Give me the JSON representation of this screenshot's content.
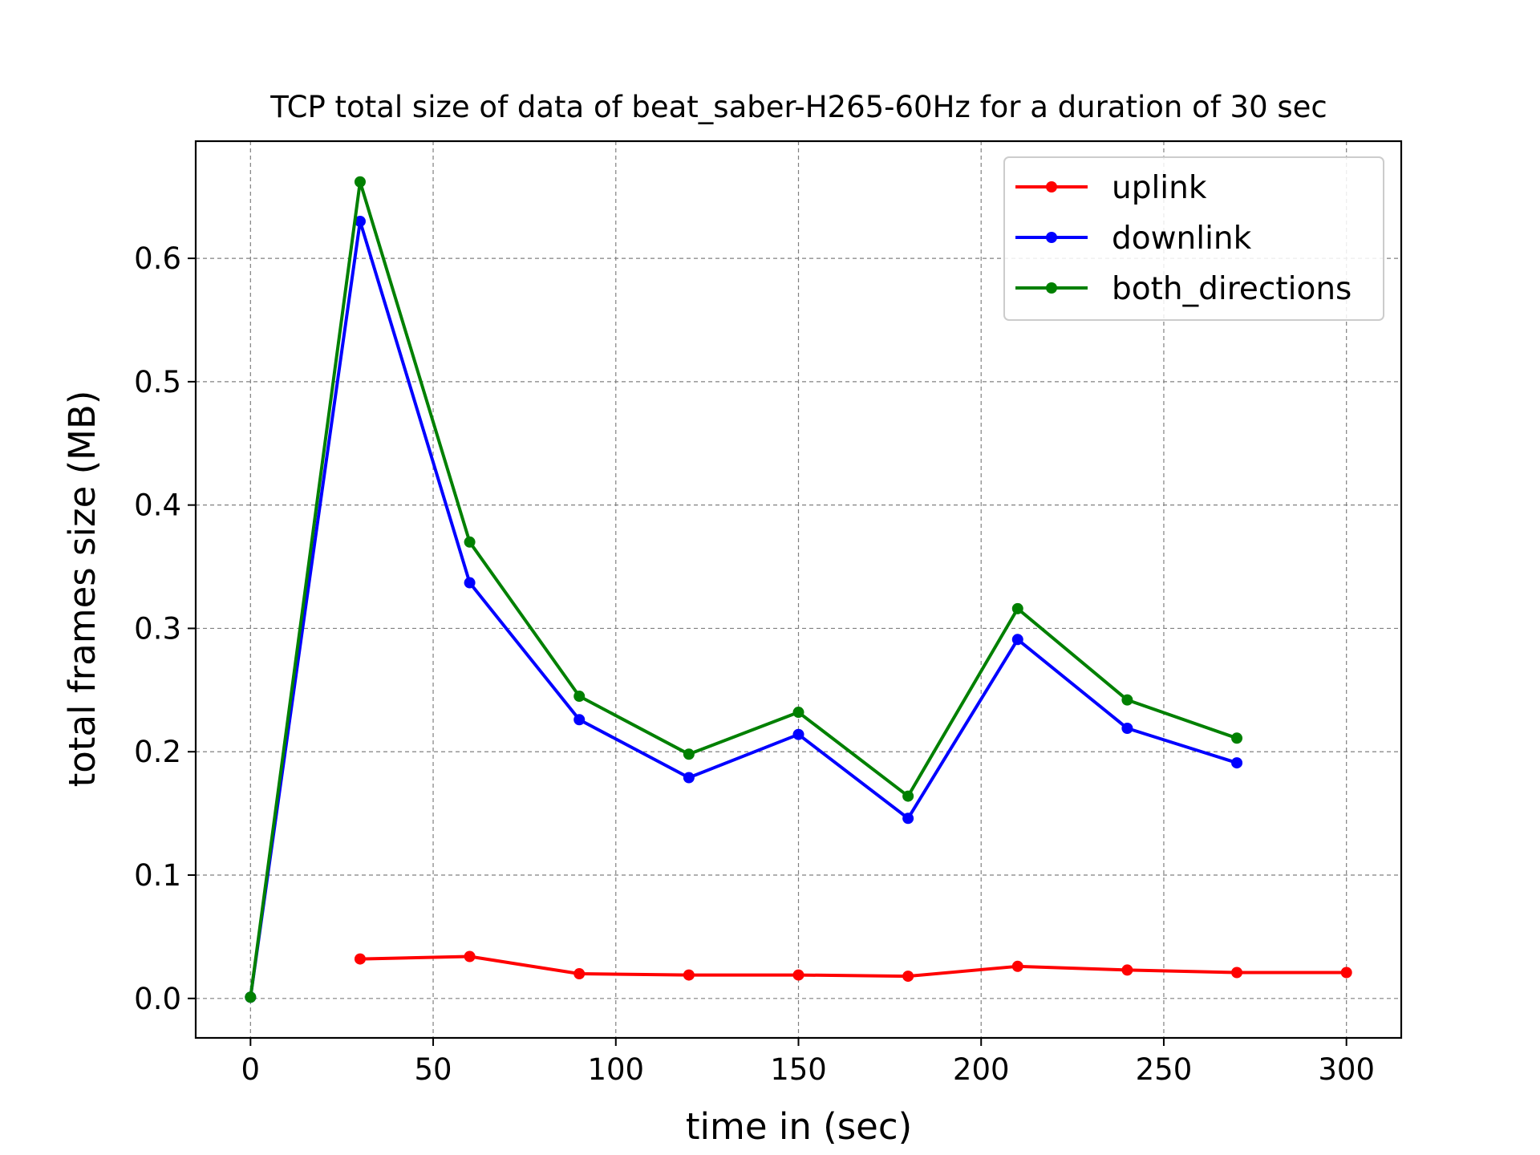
{
  "chart_data": {
    "type": "line",
    "title": "TCP total size of data of beat_saber-H265-60Hz for a duration of 30 sec",
    "xlabel": "time in (sec)",
    "ylabel": "total frames size (MB)",
    "xlim": [
      -15,
      315
    ],
    "ylim": [
      -0.032,
      0.695
    ],
    "xticks": [
      0,
      50,
      100,
      150,
      200,
      250,
      300
    ],
    "xtick_labels": [
      "0",
      "50",
      "100",
      "150",
      "200",
      "250",
      "300"
    ],
    "yticks": [
      0.0,
      0.1,
      0.2,
      0.3,
      0.4,
      0.5,
      0.6
    ],
    "ytick_labels": [
      "0.0",
      "0.1",
      "0.2",
      "0.3",
      "0.4",
      "0.5",
      "0.6"
    ],
    "grid": true,
    "legend_position": "top-right",
    "series": [
      {
        "name": "uplink",
        "color": "#ff0000",
        "x": [
          30,
          60,
          90,
          120,
          150,
          180,
          210,
          240,
          270,
          300
        ],
        "y": [
          0.032,
          0.034,
          0.02,
          0.019,
          0.019,
          0.018,
          0.026,
          0.023,
          0.021,
          0.021
        ]
      },
      {
        "name": "downlink",
        "color": "#0000ff",
        "x": [
          0,
          30,
          60,
          90,
          120,
          150,
          180,
          210,
          240,
          270
        ],
        "y": [
          0.001,
          0.63,
          0.337,
          0.226,
          0.179,
          0.214,
          0.146,
          0.291,
          0.219,
          0.191
        ]
      },
      {
        "name": "both_directions",
        "color": "#008000",
        "x": [
          0,
          30,
          60,
          90,
          120,
          150,
          180,
          210,
          240,
          270
        ],
        "y": [
          0.001,
          0.662,
          0.37,
          0.245,
          0.198,
          0.232,
          0.164,
          0.316,
          0.242,
          0.211
        ]
      }
    ]
  }
}
